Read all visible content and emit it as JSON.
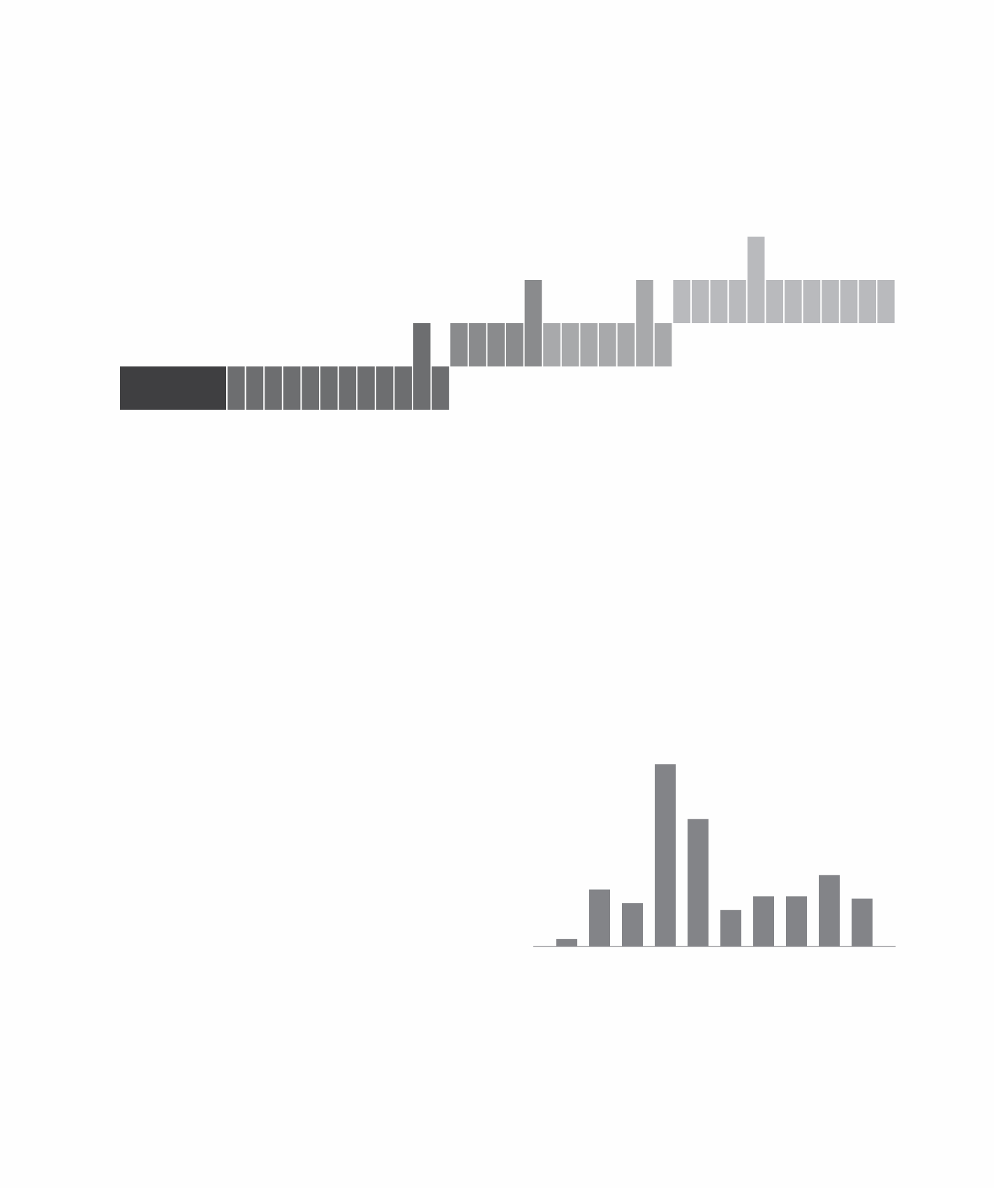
{
  "chart_data": [
    {
      "type": "blocks",
      "series": [
        {
          "color": "#3f3f41",
          "base": 0,
          "values": [
            1
          ]
        },
        {
          "color": "#6d6e70",
          "base": 0,
          "values": [
            1,
            1,
            1,
            1,
            1,
            1,
            1,
            1,
            1,
            1,
            2,
            1
          ]
        },
        {
          "color": "#8a8b8d",
          "base": 1,
          "values": [
            1,
            1,
            1,
            1,
            2
          ]
        },
        {
          "color": "#a8a9ab",
          "base": 1,
          "values": [
            1,
            1,
            1,
            1,
            1,
            2,
            1
          ]
        },
        {
          "color": "#b9babd",
          "base": 2,
          "values": [
            1,
            1,
            1,
            1,
            2,
            1,
            1,
            1,
            1,
            1,
            1,
            1
          ]
        }
      ]
    },
    {
      "type": "bar",
      "color": "#838488",
      "values": [
        10,
        75,
        57,
        240,
        168,
        48,
        66,
        66,
        94,
        63
      ],
      "ylim": [
        0,
        240
      ]
    }
  ]
}
